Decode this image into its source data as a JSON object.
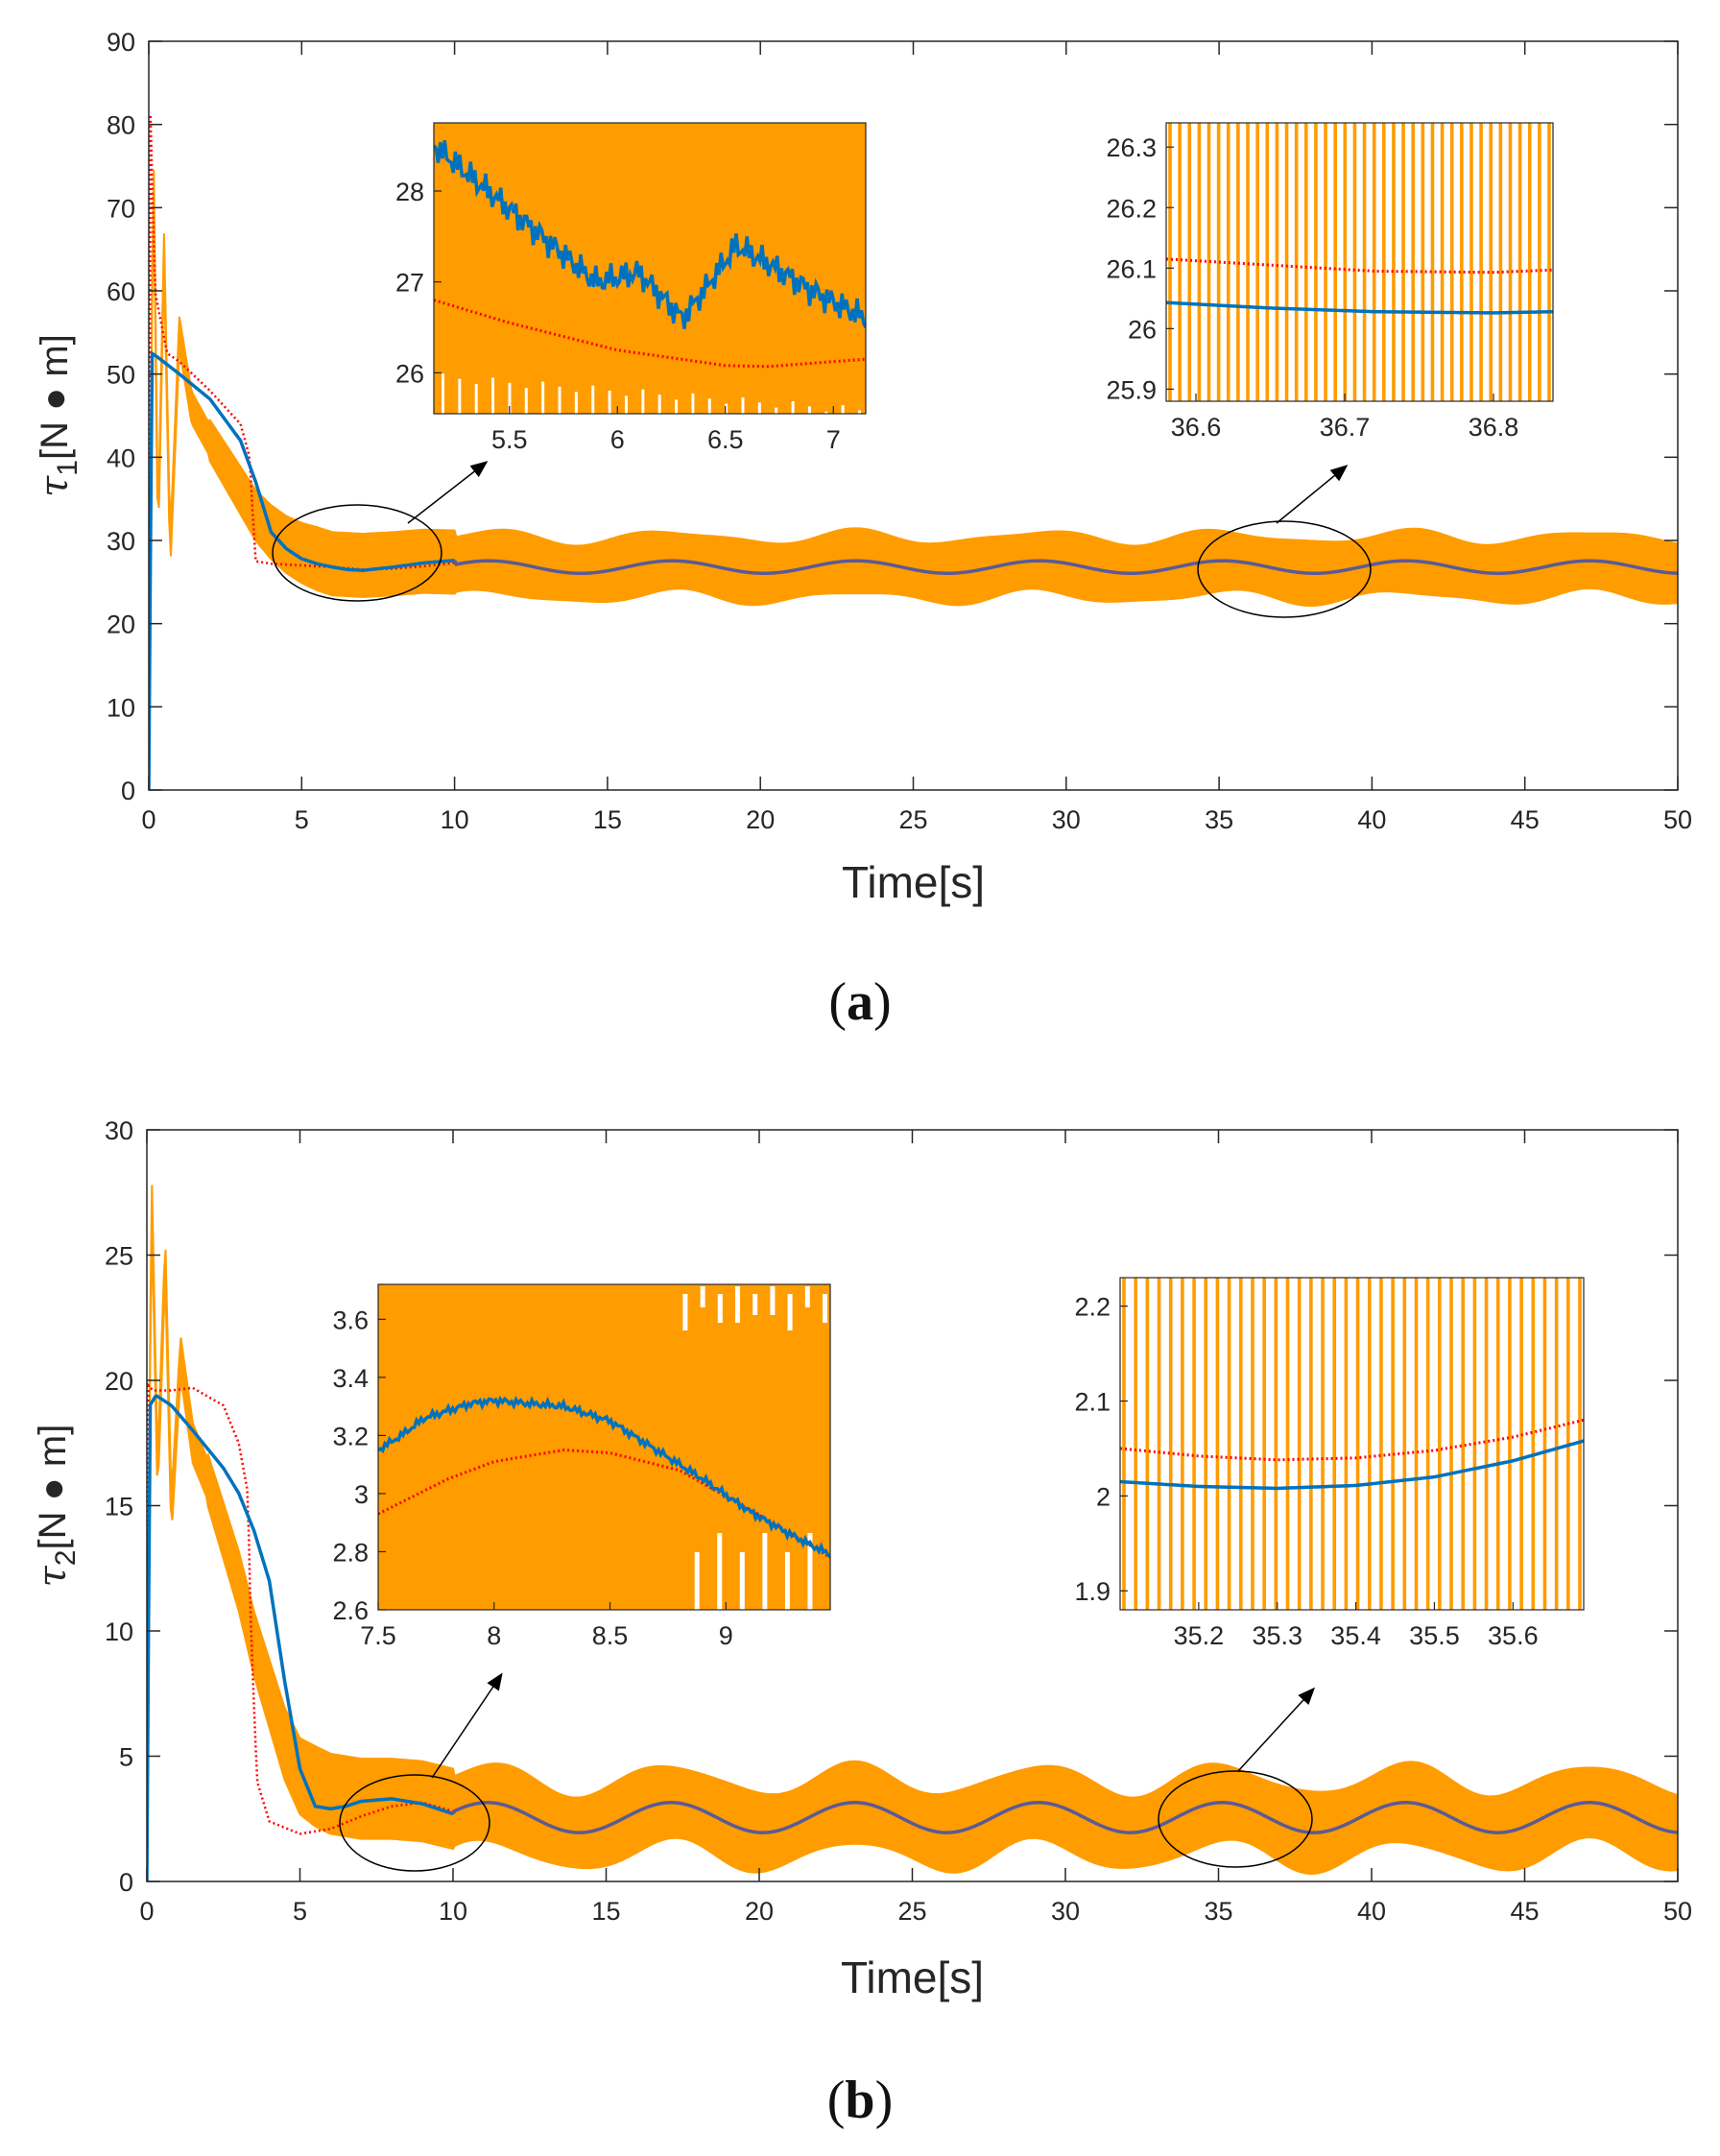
{
  "colors": {
    "orange": "#ff9c00",
    "blue": "#0072bd",
    "red": "#ff0000",
    "purple": "#5a5a96",
    "axis": "#262626"
  },
  "chart_data": [
    {
      "type": "line",
      "panel_label": "(a)",
      "xlabel": "Time[s]",
      "ylabel_symbol": "τ",
      "ylabel_sub": "1",
      "ylabel_unit": "[N ● m]",
      "xlim": [
        0,
        50
      ],
      "ylim": [
        0,
        90
      ],
      "x_ticks": [
        "0",
        "5",
        "10",
        "15",
        "20",
        "25",
        "30",
        "35",
        "40",
        "45",
        "50"
      ],
      "y_ticks": [
        "0",
        "10",
        "20",
        "30",
        "40",
        "50",
        "60",
        "70",
        "80",
        "90"
      ],
      "grid": false,
      "steady": {
        "mean": 26.8,
        "amp": 0.75,
        "period": 6.0,
        "band_half": 3.8
      },
      "series": [
        {
          "style": "orange-band",
          "x": [
            0,
            0.15,
            0.3,
            0.5,
            0.7,
            1.0,
            1.4,
            2.0,
            2.5,
            3.0,
            3.5,
            4.0,
            4.5,
            5.0,
            5.5,
            6.0,
            7.0,
            8.0,
            9.0,
            10.0
          ],
          "y": [
            10,
            78,
            30,
            65,
            28,
            55,
            46,
            42,
            39,
            36,
            33,
            31,
            29.5,
            28.5,
            27.8,
            27.2,
            27.0,
            27.2,
            27.5,
            27.4
          ]
        },
        {
          "style": "blue",
          "x": [
            0,
            0.1,
            0.3,
            1.0,
            2.0,
            3.0,
            3.5,
            4.0,
            4.5,
            5.0,
            5.5,
            6.0,
            6.5,
            7.0,
            8.0,
            9.0,
            10.0
          ],
          "y": [
            0,
            52.5,
            52.0,
            50.0,
            47.0,
            42.0,
            37.0,
            31.0,
            29.0,
            27.8,
            27.2,
            26.8,
            26.5,
            26.4,
            26.8,
            27.3,
            27.6
          ]
        },
        {
          "style": "red",
          "x": [
            0,
            0.05,
            0.2,
            0.6,
            1.0,
            2.0,
            3.0,
            3.3,
            3.4,
            3.5,
            4.0,
            5.0,
            6.0,
            7.0,
            8.0,
            9.0,
            10.0
          ],
          "y": [
            0,
            82,
            60,
            52.5,
            51.5,
            48.0,
            44.0,
            40.0,
            33.0,
            27.5,
            27.2,
            27.0,
            26.8,
            26.5,
            26.6,
            26.9,
            27.3
          ]
        }
      ],
      "insets": [
        {
          "xlim": [
            5.15,
            7.15
          ],
          "ylim": [
            25.55,
            28.75
          ],
          "x_ticks": [
            "5.5",
            "6",
            "6.5",
            "7"
          ],
          "y_ticks": [
            "26",
            "27",
            "28"
          ],
          "red": {
            "x": [
              5.15,
              5.5,
              6.0,
              6.5,
              6.7,
              7.15
            ],
            "y": [
              26.8,
              26.55,
              26.25,
              26.08,
              26.07,
              26.15
            ]
          },
          "blue": {
            "x": [
              5.15,
              5.4,
              5.6,
              5.9,
              6.1,
              6.3,
              6.4,
              6.55,
              6.7,
              6.9,
              7.15
            ],
            "y": [
              28.5,
              28.0,
              27.6,
              27.0,
              27.1,
              26.6,
              26.9,
              27.4,
              27.2,
              26.9,
              26.6
            ]
          }
        },
        {
          "xlim": [
            36.58,
            36.84
          ],
          "ylim": [
            25.88,
            26.34
          ],
          "x_ticks": [
            "36.6",
            "36.7",
            "36.8"
          ],
          "y_ticks": [
            "25.9",
            "26",
            "26.1",
            "26.2",
            "26.3"
          ],
          "red": {
            "x": [
              36.58,
              36.65,
              36.72,
              36.8,
              36.84
            ],
            "y": [
              26.115,
              26.105,
              26.095,
              26.093,
              26.097
            ]
          },
          "blue": {
            "x": [
              36.58,
              36.65,
              36.72,
              36.8,
              36.84
            ],
            "y": [
              26.043,
              26.034,
              26.028,
              26.026,
              26.028
            ]
          }
        }
      ]
    },
    {
      "type": "line",
      "panel_label": "(b)",
      "xlabel": "Time[s]",
      "ylabel_symbol": "τ",
      "ylabel_sub": "2",
      "ylabel_unit": "[N ● m]",
      "xlim": [
        0,
        50
      ],
      "ylim": [
        0,
        30
      ],
      "x_ticks": [
        "0",
        "5",
        "10",
        "15",
        "20",
        "25",
        "30",
        "35",
        "40",
        "45",
        "50"
      ],
      "y_ticks": [
        "0",
        "5",
        "10",
        "15",
        "20",
        "25",
        "30"
      ],
      "grid": false,
      "steady": {
        "mean": 2.55,
        "amp": 0.6,
        "period": 6.0,
        "band_half": 1.6
      },
      "series": [
        {
          "style": "orange-band",
          "x": [
            0,
            0.15,
            0.35,
            0.6,
            0.8,
            1.1,
            1.5,
            2.0,
            2.5,
            3.0,
            3.5,
            4.0,
            4.5,
            5.0,
            5.5,
            6.0,
            7.0,
            8.0,
            9.0,
            10.0
          ],
          "y": [
            4,
            28,
            16,
            25,
            14.5,
            21,
            17.5,
            16.0,
            14.0,
            12.0,
            9.5,
            7.5,
            5.5,
            4.2,
            3.8,
            3.5,
            3.3,
            3.3,
            3.2,
            2.9
          ]
        },
        {
          "style": "blue",
          "x": [
            0,
            0.1,
            0.3,
            0.8,
            1.5,
            2.5,
            3.0,
            3.5,
            4.0,
            4.5,
            5.0,
            5.5,
            6.0,
            6.5,
            7.0,
            8.0,
            9.0,
            10.0
          ],
          "y": [
            0,
            19.0,
            19.4,
            19.0,
            18.0,
            16.5,
            15.5,
            14.0,
            12.0,
            8.0,
            4.5,
            3.0,
            2.9,
            3.0,
            3.2,
            3.3,
            3.1,
            2.7
          ]
        },
        {
          "style": "red",
          "x": [
            0,
            0.05,
            0.2,
            0.8,
            1.5,
            2.5,
            3.0,
            3.3,
            3.4,
            3.6,
            4.0,
            5.0,
            6.0,
            7.0,
            8.0,
            9.0,
            10.0
          ],
          "y": [
            0,
            19.8,
            19.6,
            19.6,
            19.7,
            19.0,
            17.5,
            15.5,
            10.0,
            4.0,
            2.4,
            1.9,
            2.1,
            2.6,
            3.0,
            3.15,
            2.8
          ]
        }
      ],
      "insets": [
        {
          "xlim": [
            7.5,
            9.45
          ],
          "ylim": [
            2.6,
            3.72
          ],
          "x_ticks": [
            "7.5",
            "8",
            "8.5",
            "9"
          ],
          "y_ticks": [
            "2.6",
            "2.8",
            "3",
            "3.2",
            "3.4",
            "3.6"
          ],
          "red": {
            "x": [
              7.5,
              7.8,
              8.0,
              8.3,
              8.5,
              8.8,
              9.0,
              9.2,
              9.45
            ],
            "y": [
              2.93,
              3.05,
              3.11,
              3.15,
              3.14,
              3.08,
              2.99,
              2.9,
              2.78
            ]
          },
          "blue": {
            "x": [
              7.5,
              7.6,
              7.7,
              7.9,
              8.0,
              8.3,
              8.5,
              8.7,
              8.9,
              9.1,
              9.3,
              9.45
            ],
            "y": [
              3.15,
              3.2,
              3.26,
              3.31,
              3.32,
              3.3,
              3.25,
              3.15,
              3.05,
              2.94,
              2.85,
              2.79
            ]
          }
        },
        {
          "xlim": [
            35.1,
            35.69
          ],
          "ylim": [
            1.88,
            2.23
          ],
          "x_ticks": [
            "35.2",
            "35.3",
            "35.4",
            "35.5",
            "35.6"
          ],
          "y_ticks": [
            "1.9",
            "2",
            "2.1",
            "2.2"
          ],
          "red": {
            "x": [
              35.1,
              35.2,
              35.3,
              35.4,
              35.5,
              35.6,
              35.69
            ],
            "y": [
              2.05,
              2.042,
              2.038,
              2.04,
              2.048,
              2.062,
              2.08
            ]
          },
          "blue": {
            "x": [
              35.1,
              35.2,
              35.3,
              35.4,
              35.5,
              35.6,
              35.69
            ],
            "y": [
              2.015,
              2.01,
              2.008,
              2.011,
              2.02,
              2.037,
              2.058
            ]
          }
        }
      ]
    }
  ]
}
